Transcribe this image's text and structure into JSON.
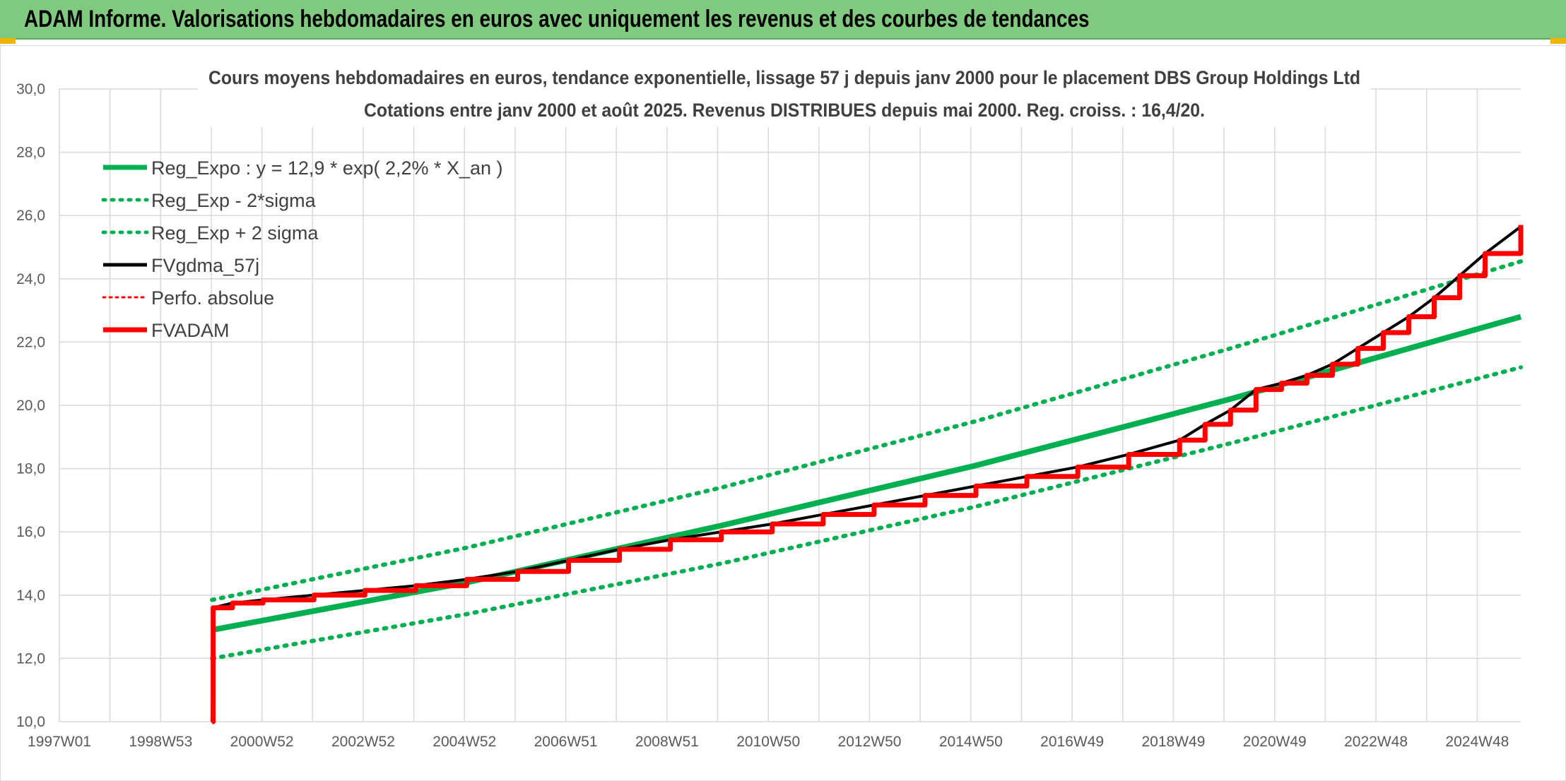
{
  "banner": {
    "title": "ADAM Informe. Valorisations hebdomadaires en euros avec uniquement les revenus et des courbes de tendances"
  },
  "colors": {
    "reg_expo": "#00b050",
    "sigma": "#00b050",
    "fvgdma": "#000000",
    "perfo": "#ff0000",
    "fvadam": "#ff0000",
    "banner_bg": "#7fca7f"
  },
  "chart_data": {
    "type": "line",
    "title": "Cours moyens hebdomadaires en euros, tendance exponentielle, lissage 57 j depuis janv 2000 pour le placement DBS Group Holdings Ltd",
    "subtitle": "Cotations entre janv 2000 et août 2025. Revenus DISTRIBUES depuis mai 2000. Reg. croiss. : 16,4/20.",
    "xlabel": "",
    "ylabel": "",
    "x_axis_range": [
      1997.0,
      2025.7
    ],
    "ylim": [
      10,
      30
    ],
    "y_ticks": [
      "10,0",
      "12,0",
      "14,0",
      "16,0",
      "18,0",
      "20,0",
      "22,0",
      "24,0",
      "26,0",
      "28,0",
      "30,0"
    ],
    "x_tick_labels": [
      "1997W01",
      "1998W53",
      "2000W52",
      "2002W52",
      "2004W52",
      "2006W51",
      "2008W51",
      "2010W50",
      "2012W50",
      "2014W50",
      "2016W49",
      "2018W49",
      "2020W49",
      "2022W48",
      "2024W48"
    ],
    "grid": true,
    "legend_position": "top-left",
    "legend": [
      "Reg_Expo : y = 12,9 * exp( 2,2% *  X_an )",
      "Reg_Exp - 2*sigma",
      "Reg_Exp + 2 sigma",
      "FVgdma_57j",
      "Perfo. absolue",
      "FVADAM"
    ],
    "series": [
      {
        "name": "Reg_Expo : y = 12,9 * exp( 2,2% *  X_an )",
        "x": [
          2000.0,
          2005.0,
          2010.0,
          2015.0,
          2020.0,
          2025.7
        ],
        "values": [
          12.9,
          14.4,
          16.2,
          18.1,
          20.2,
          22.8
        ]
      },
      {
        "name": "Reg_Exp - 2*sigma",
        "x": [
          2000.0,
          2005.0,
          2010.0,
          2015.0,
          2020.0,
          2025.7
        ],
        "values": [
          12.0,
          13.4,
          15.0,
          16.8,
          18.8,
          21.2
        ]
      },
      {
        "name": "Reg_Exp + 2 sigma",
        "x": [
          2000.0,
          2005.0,
          2010.0,
          2015.0,
          2020.0,
          2025.7
        ],
        "values": [
          13.85,
          15.5,
          17.4,
          19.5,
          21.8,
          24.55
        ]
      },
      {
        "name": "FVgdma_57j",
        "x": [
          2000.0,
          2000.02,
          2000.4,
          2001.0,
          2002.0,
          2003.0,
          2004.0,
          2005.0,
          2006.0,
          2007.0,
          2008.0,
          2009.0,
          2010.0,
          2011.0,
          2012.0,
          2013.0,
          2014.0,
          2015.0,
          2016.0,
          2017.0,
          2018.0,
          2019.0,
          2019.5,
          2020.0,
          2020.5,
          2021.0,
          2021.5,
          2022.0,
          2022.5,
          2023.0,
          2023.5,
          2024.0,
          2024.5,
          2025.0,
          2025.7
        ],
        "values": [
          10.0,
          13.6,
          13.75,
          13.85,
          14.0,
          14.15,
          14.3,
          14.5,
          14.75,
          15.1,
          15.45,
          15.75,
          16.0,
          16.25,
          16.55,
          16.85,
          17.15,
          17.45,
          17.75,
          18.05,
          18.45,
          18.9,
          19.4,
          19.85,
          20.5,
          20.7,
          20.95,
          21.3,
          21.8,
          22.3,
          22.8,
          23.4,
          24.1,
          24.8,
          25.65
        ]
      },
      {
        "name": "Perfo. absolue",
        "x": [
          2000.0,
          2000.02,
          2000.4,
          2001.0,
          2002.0,
          2003.0,
          2004.0,
          2005.0,
          2006.0,
          2007.0,
          2008.0,
          2009.0,
          2010.0,
          2011.0,
          2012.0,
          2013.0,
          2014.0,
          2015.0,
          2016.0,
          2017.0,
          2018.0,
          2019.0,
          2019.5,
          2020.0,
          2020.5,
          2021.0,
          2021.5,
          2022.0,
          2022.5,
          2023.0,
          2023.5,
          2024.0,
          2024.5,
          2025.0,
          2025.7
        ],
        "values": [
          10.0,
          13.6,
          13.75,
          13.85,
          14.0,
          14.15,
          14.3,
          14.5,
          14.75,
          15.1,
          15.45,
          15.75,
          16.0,
          16.25,
          16.55,
          16.85,
          17.15,
          17.45,
          17.75,
          18.05,
          18.45,
          18.9,
          19.4,
          19.85,
          20.5,
          20.7,
          20.95,
          21.3,
          21.8,
          22.3,
          22.8,
          23.4,
          24.1,
          24.8,
          25.65
        ]
      },
      {
        "name": "FVADAM",
        "x": [
          2000.0,
          2000.02,
          2000.4,
          2001.0,
          2002.0,
          2003.0,
          2004.0,
          2005.0,
          2006.0,
          2007.0,
          2008.0,
          2009.0,
          2010.0,
          2011.0,
          2012.0,
          2013.0,
          2014.0,
          2015.0,
          2016.0,
          2017.0,
          2018.0,
          2019.0,
          2019.5,
          2020.0,
          2020.5,
          2021.0,
          2021.5,
          2022.0,
          2022.5,
          2023.0,
          2023.5,
          2024.0,
          2024.5,
          2025.0,
          2025.7
        ],
        "values": [
          10.0,
          13.6,
          13.75,
          13.85,
          14.0,
          14.15,
          14.3,
          14.5,
          14.75,
          15.1,
          15.45,
          15.75,
          16.0,
          16.25,
          16.55,
          16.85,
          17.15,
          17.45,
          17.75,
          18.05,
          18.45,
          18.9,
          19.4,
          19.85,
          20.5,
          20.7,
          20.95,
          21.3,
          21.8,
          22.3,
          22.8,
          23.4,
          24.1,
          24.8,
          25.7
        ]
      }
    ]
  }
}
